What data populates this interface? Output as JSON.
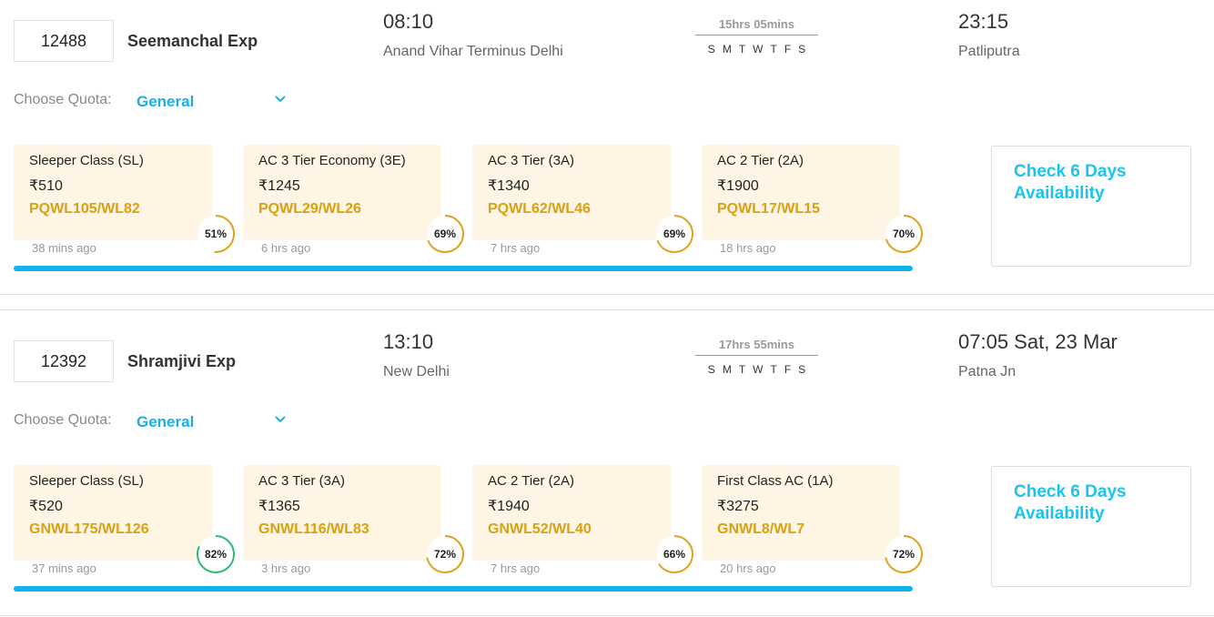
{
  "colors": {
    "accent": "#1ab0e6",
    "status": "#d9a011",
    "ring_green": "#2dba76",
    "ring_orange": "#e0a21a",
    "bar": "#10b4ea"
  },
  "trains": [
    {
      "number": "12488",
      "name": "Seemanchal Exp",
      "dep_time": "08:10",
      "dep_station": "Anand Vihar Terminus Delhi",
      "duration": "15hrs 05mins",
      "days": [
        "S",
        "M",
        "T",
        "W",
        "T",
        "F",
        "S"
      ],
      "arr_time": "23:15",
      "arr_station": "Patliputra",
      "quota_label": "Choose Quota:",
      "quota": "General",
      "check_label": "Check 6 Days Availability",
      "classes": [
        {
          "name": "Sleeper Class (SL)",
          "price": "₹510",
          "status": "PQWL105/WL82",
          "percent": 51,
          "updated": "38 mins ago"
        },
        {
          "name": "AC 3 Tier Economy (3E)",
          "price": "₹1245",
          "status": "PQWL29/WL26",
          "percent": 69,
          "updated": "6 hrs ago"
        },
        {
          "name": "AC 3 Tier (3A)",
          "price": "₹1340",
          "status": "PQWL62/WL46",
          "percent": 69,
          "updated": "7 hrs ago"
        },
        {
          "name": "AC 2 Tier (2A)",
          "price": "₹1900",
          "status": "PQWL17/WL15",
          "percent": 70,
          "updated": "18 hrs ago"
        }
      ]
    },
    {
      "number": "12392",
      "name": "Shramjivi Exp",
      "dep_time": "13:10",
      "dep_station": "New Delhi",
      "duration": "17hrs 55mins",
      "days": [
        "S",
        "M",
        "T",
        "W",
        "T",
        "F",
        "S"
      ],
      "arr_time": "07:05 Sat, 23 Mar",
      "arr_station": "Patna Jn",
      "quota_label": "Choose Quota:",
      "quota": "General",
      "check_label": "Check 6 Days Availability",
      "classes": [
        {
          "name": "Sleeper Class (SL)",
          "price": "₹520",
          "status": "GNWL175/WL126",
          "percent": 82,
          "updated": "37 mins ago"
        },
        {
          "name": "AC 3 Tier (3A)",
          "price": "₹1365",
          "status": "GNWL116/WL83",
          "percent": 72,
          "updated": "3 hrs ago"
        },
        {
          "name": "AC 2 Tier (2A)",
          "price": "₹1940",
          "status": "GNWL52/WL40",
          "percent": 66,
          "updated": "7 hrs ago"
        },
        {
          "name": "First Class AC (1A)",
          "price": "₹3275",
          "status": "GNWL8/WL7",
          "percent": 72,
          "updated": "20 hrs ago"
        }
      ]
    }
  ]
}
